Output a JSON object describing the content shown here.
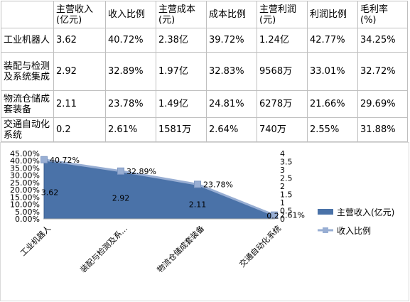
{
  "table": {
    "headers": [
      "",
      "主营收入\n(亿元)",
      "收入比例",
      "主营成本\n(元)",
      "成本比例",
      "主营利润\n(元)",
      "利润比例",
      "毛利率\n(%)"
    ],
    "rows": [
      [
        "工业机器人",
        "3.62",
        "40.72%",
        "2.38亿",
        "39.72%",
        "1.24亿",
        "42.77%",
        "34.25%"
      ],
      [
        "装配与检测及系统集成",
        "2.92",
        "32.89%",
        "1.97亿",
        "32.83%",
        "9568万",
        "33.01%",
        "32.72%"
      ],
      [
        "物流仓储成套装备",
        "2.11",
        "23.78%",
        "1.49亿",
        "24.81%",
        "6278万",
        "21.66%",
        "29.69%"
      ],
      [
        "交通自动化系统",
        "0.2",
        "2.61%",
        "1581万",
        "2.64%",
        "740万",
        "2.55%",
        "31.88%"
      ]
    ]
  },
  "chart_data": {
    "type": "area",
    "categories": [
      "工业机器人",
      "装配与检测及系…",
      "物流仓储成套装备",
      "交通自动化系统"
    ],
    "series": [
      {
        "name": "主营收入(亿元)",
        "type": "area",
        "axis": "right",
        "values": [
          3.62,
          2.92,
          2.11,
          0.2
        ],
        "labels": [
          "3.62",
          "2.92",
          "2.11",
          "0.2"
        ],
        "color": "#4a72a8"
      },
      {
        "name": "收入比例",
        "type": "line",
        "axis": "left",
        "values": [
          40.72,
          32.89,
          23.78,
          2.61
        ],
        "labels": [
          "40.72%",
          "32.89%",
          "23.78%",
          "2.61%"
        ],
        "color": "#98aed3"
      }
    ],
    "y_left": {
      "range": [
        0,
        45
      ],
      "ticks": [
        "0.00%",
        "5.00%",
        "10.00%",
        "15.00%",
        "20.00%",
        "25.00%",
        "30.00%",
        "35.00%",
        "40.00%",
        "45.00%"
      ]
    },
    "y_right": {
      "range": [
        0,
        4
      ],
      "ticks": [
        "0",
        "0.5",
        "1",
        "1.5",
        "2",
        "2.5",
        "3",
        "3.5",
        "4"
      ]
    },
    "legend": "right",
    "grid": false
  }
}
